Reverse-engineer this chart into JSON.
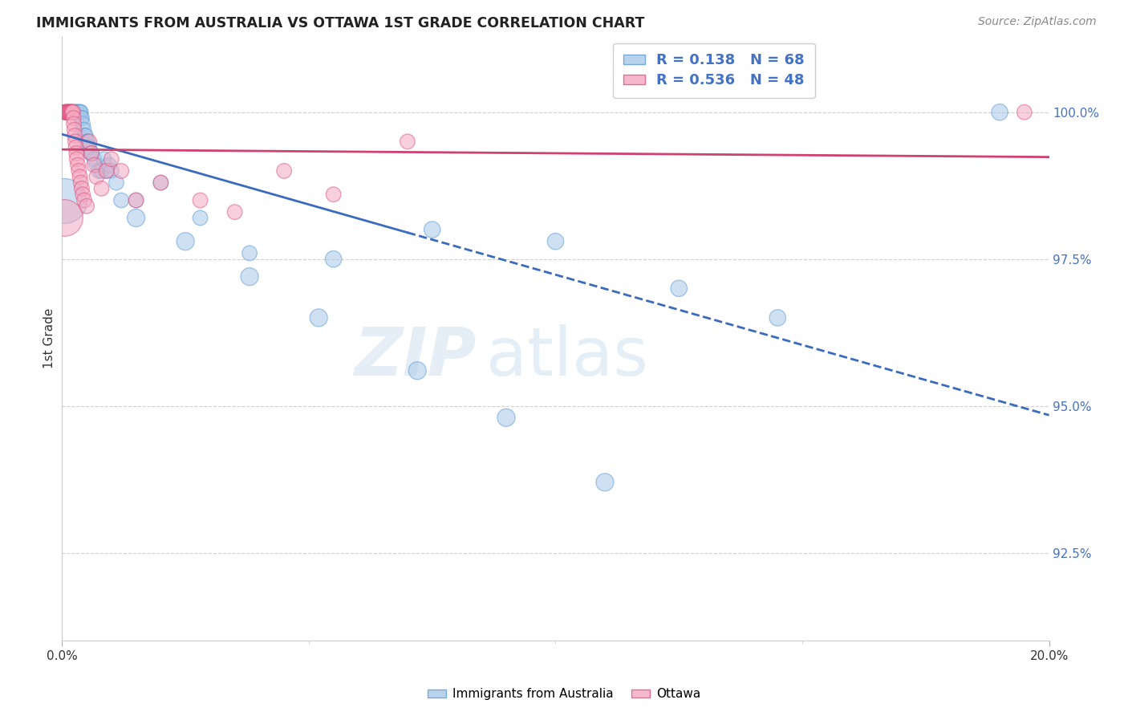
{
  "title": "IMMIGRANTS FROM AUSTRALIA VS OTTAWA 1ST GRADE CORRELATION CHART",
  "source": "Source: ZipAtlas.com",
  "ylabel": "1st Grade",
  "legend_label1": "Immigrants from Australia",
  "legend_label2": "Ottawa",
  "R1": "0.138",
  "N1": "68",
  "R2": "0.536",
  "N2": "48",
  "color1_fill": "#a8c8e8",
  "color1_edge": "#5b9bd5",
  "color2_fill": "#f4a8c0",
  "color2_edge": "#e05080",
  "color1_line": "#3a6bbf",
  "color2_line": "#d04070",
  "ytick_vals": [
    92.5,
    95.0,
    97.5,
    100.0
  ],
  "ytick_labels": [
    "92.5%",
    "95.0%",
    "97.5%",
    "100.0%"
  ],
  "ymin": 91.0,
  "ymax": 101.3,
  "xmin": 0.0,
  "xmax": 20.0,
  "blue_x": [
    0.05,
    0.07,
    0.08,
    0.09,
    0.1,
    0.1,
    0.11,
    0.12,
    0.13,
    0.14,
    0.15,
    0.15,
    0.16,
    0.17,
    0.18,
    0.18,
    0.19,
    0.2,
    0.2,
    0.21,
    0.22,
    0.23,
    0.24,
    0.25,
    0.26,
    0.27,
    0.28,
    0.29,
    0.3,
    0.31,
    0.32,
    0.33,
    0.34,
    0.35,
    0.36,
    0.37,
    0.38,
    0.39,
    0.4,
    0.42,
    0.44,
    0.46,
    0.48,
    0.5,
    0.52,
    0.55,
    0.58,
    0.6,
    0.65,
    0.7,
    0.75,
    0.8,
    0.85,
    0.9,
    0.95,
    1.0,
    1.1,
    1.2,
    1.5,
    2.0,
    2.8,
    3.8,
    5.5,
    7.5,
    10.0,
    12.5,
    14.5,
    19.0
  ],
  "blue_y": [
    100.0,
    100.0,
    100.0,
    100.0,
    100.0,
    100.0,
    100.0,
    100.0,
    100.0,
    100.0,
    100.0,
    100.0,
    100.0,
    100.0,
    100.0,
    100.0,
    100.0,
    100.0,
    100.0,
    100.0,
    100.0,
    100.0,
    100.0,
    100.0,
    100.0,
    100.0,
    100.0,
    100.0,
    100.0,
    100.0,
    100.0,
    100.0,
    100.0,
    100.0,
    100.0,
    100.0,
    100.0,
    99.9,
    99.9,
    99.8,
    99.7,
    99.6,
    99.6,
    99.5,
    99.5,
    99.4,
    99.3,
    99.3,
    99.2,
    99.1,
    99.0,
    99.0,
    99.2,
    99.0,
    99.1,
    99.0,
    98.8,
    98.5,
    98.5,
    98.8,
    98.2,
    97.6,
    97.5,
    98.0,
    97.8,
    97.0,
    96.5,
    100.0
  ],
  "blue_size": [
    10,
    10,
    10,
    10,
    10,
    10,
    10,
    10,
    10,
    10,
    10,
    10,
    10,
    10,
    10,
    10,
    10,
    10,
    10,
    10,
    10,
    10,
    10,
    10,
    10,
    10,
    10,
    10,
    10,
    10,
    10,
    10,
    10,
    10,
    10,
    10,
    10,
    10,
    10,
    10,
    10,
    10,
    10,
    10,
    10,
    10,
    10,
    10,
    10,
    10,
    10,
    10,
    10,
    10,
    10,
    10,
    10,
    10,
    10,
    10,
    10,
    10,
    12,
    12,
    12,
    12,
    12,
    12
  ],
  "blue_big_x": [
    0.04
  ],
  "blue_big_y": [
    98.5
  ],
  "blue_big_size": [
    90
  ],
  "blue_outlier_x": [
    1.5,
    2.5,
    3.8,
    5.2,
    7.2,
    9.0,
    11.0
  ],
  "blue_outlier_y": [
    98.2,
    97.8,
    97.2,
    96.5,
    95.6,
    94.8,
    93.7
  ],
  "blue_outlier_size": [
    14,
    14,
    14,
    14,
    14,
    14,
    14
  ],
  "pink_x": [
    0.06,
    0.08,
    0.09,
    0.1,
    0.11,
    0.12,
    0.13,
    0.14,
    0.15,
    0.16,
    0.17,
    0.18,
    0.19,
    0.2,
    0.21,
    0.22,
    0.23,
    0.24,
    0.25,
    0.26,
    0.27,
    0.28,
    0.29,
    0.3,
    0.32,
    0.34,
    0.36,
    0.38,
    0.4,
    0.42,
    0.45,
    0.5,
    0.55,
    0.6,
    0.65,
    0.7,
    0.8,
    0.9,
    1.0,
    1.2,
    1.5,
    2.0,
    2.8,
    3.5,
    4.5,
    5.5,
    7.0,
    19.5
  ],
  "pink_y": [
    100.0,
    100.0,
    100.0,
    100.0,
    100.0,
    100.0,
    100.0,
    100.0,
    100.0,
    100.0,
    100.0,
    100.0,
    100.0,
    100.0,
    100.0,
    100.0,
    99.9,
    99.8,
    99.7,
    99.6,
    99.5,
    99.4,
    99.3,
    99.2,
    99.1,
    99.0,
    98.9,
    98.8,
    98.7,
    98.6,
    98.5,
    98.4,
    99.5,
    99.3,
    99.1,
    98.9,
    98.7,
    99.0,
    99.2,
    99.0,
    98.5,
    98.8,
    98.5,
    98.3,
    99.0,
    98.6,
    99.5,
    100.0
  ],
  "pink_size": [
    10,
    10,
    10,
    10,
    10,
    10,
    10,
    10,
    10,
    10,
    10,
    10,
    10,
    10,
    10,
    10,
    10,
    10,
    10,
    10,
    10,
    10,
    10,
    10,
    10,
    10,
    10,
    10,
    10,
    10,
    10,
    10,
    10,
    10,
    10,
    10,
    10,
    10,
    10,
    10,
    10,
    10,
    10,
    10,
    10,
    10,
    10,
    10
  ],
  "pink_big_x": [
    0.04
  ],
  "pink_big_y": [
    98.2
  ],
  "pink_big_size": [
    60
  ]
}
